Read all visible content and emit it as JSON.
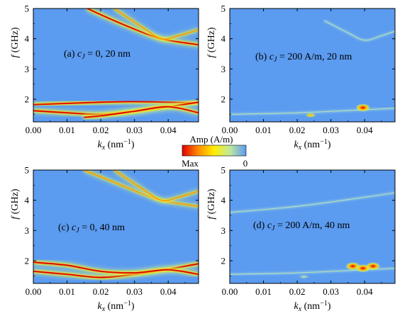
{
  "colorbar": {
    "title": "Amp (A/m)",
    "min_label": "Max",
    "max_label": "0",
    "colors": [
      "#e00000",
      "#ff8c00",
      "#ffee00",
      "#bfe8a0",
      "#5b9bf0"
    ]
  },
  "chart_data": [
    {
      "id": "a",
      "type": "heatmap",
      "annotation_prefix": "(a) ",
      "annotation_var": "c",
      "annotation_sub": "J",
      "annotation_rest": " = 0, 20 nm",
      "xlabel_var": "k",
      "xlabel_sub": "x",
      "xlabel_unit": " (nm",
      "xlabel_sup": "−1",
      "xlabel_close": ")",
      "ylabel_var": "f",
      "ylabel_unit": " (GHz)",
      "xlim": [
        0.0,
        0.049
      ],
      "ylim": [
        1.25,
        5.0
      ],
      "xticks": [
        "0.00",
        "0.01",
        "0.02",
        "0.03",
        "0.04"
      ],
      "yticks": [
        "2",
        "3",
        "4",
        "5"
      ],
      "background": "#5b9bf0",
      "branches": [
        {
          "x": [
            0.016,
            0.025,
            0.035,
            0.04,
            0.049
          ],
          "y": [
            5.0,
            4.55,
            4.1,
            3.95,
            3.8
          ],
          "intensity": "high"
        },
        {
          "x": [
            0.024,
            0.032,
            0.038,
            0.043,
            0.049
          ],
          "y": [
            5.0,
            4.4,
            4.0,
            4.1,
            4.3
          ],
          "intensity": "medium"
        },
        {
          "x": [
            0.0,
            0.02,
            0.03,
            0.04,
            0.049
          ],
          "y": [
            1.82,
            1.9,
            1.92,
            1.9,
            1.88
          ],
          "intensity": "high"
        },
        {
          "x": [
            0.0,
            0.01,
            0.02,
            0.03,
            0.04,
            0.049
          ],
          "y": [
            1.62,
            1.55,
            1.5,
            1.6,
            1.75,
            1.9
          ],
          "intensity": "high"
        },
        {
          "x": [
            0.015,
            0.02,
            0.03,
            0.04,
            0.049
          ],
          "y": [
            1.4,
            1.45,
            1.6,
            1.75,
            1.55
          ],
          "intensity": "high"
        }
      ]
    },
    {
      "id": "b",
      "type": "heatmap",
      "annotation_prefix": "(b) ",
      "annotation_var": "c",
      "annotation_sub": "J",
      "annotation_rest": " = 200 A/m, 20 nm",
      "xlabel_var": "k",
      "xlabel_sub": "x",
      "xlabel_unit": " (nm",
      "xlabel_sup": "−1",
      "xlabel_close": ")",
      "ylabel_var": "f",
      "ylabel_unit": " (GHz)",
      "xlim": [
        0.0,
        0.049
      ],
      "ylim": [
        1.25,
        5.0
      ],
      "xticks": [
        "0.00",
        "0.01",
        "0.02",
        "0.03",
        "0.04"
      ],
      "yticks": [
        "2",
        "3",
        "4",
        "5"
      ],
      "background": "#5b9bf0",
      "branches": [
        {
          "x": [
            0.028,
            0.035,
            0.04,
            0.045,
            0.049
          ],
          "y": [
            4.6,
            4.2,
            3.95,
            4.1,
            4.25
          ],
          "intensity": "faint"
        },
        {
          "x": [
            0.0,
            0.02,
            0.04,
            0.049
          ],
          "y": [
            1.5,
            1.55,
            1.65,
            1.7
          ],
          "intensity": "faint"
        }
      ],
      "hotspots": [
        {
          "x": 0.0395,
          "y": 1.72,
          "intensity": "high"
        },
        {
          "x": 0.024,
          "y": 1.47,
          "intensity": "medium"
        }
      ]
    },
    {
      "id": "c",
      "type": "heatmap",
      "annotation_prefix": "(c) ",
      "annotation_var": "c",
      "annotation_sub": "J",
      "annotation_rest": " = 0, 40 nm",
      "xlabel_var": "k",
      "xlabel_sub": "x",
      "xlabel_unit": " (nm",
      "xlabel_sup": "−1",
      "xlabel_close": ")",
      "ylabel_var": "f",
      "ylabel_unit": " (GHz)",
      "xlim": [
        0.0,
        0.049
      ],
      "ylim": [
        1.25,
        5.0
      ],
      "xticks": [
        "0.00",
        "0.01",
        "0.02",
        "0.03",
        "0.04"
      ],
      "yticks": [
        "2",
        "3",
        "4",
        "5"
      ],
      "background": "#5b9bf0",
      "branches": [
        {
          "x": [
            0.015,
            0.025,
            0.035,
            0.04,
            0.049
          ],
          "y": [
            5.0,
            4.55,
            4.1,
            3.95,
            3.8
          ],
          "intensity": "medium"
        },
        {
          "x": [
            0.024,
            0.032,
            0.038,
            0.043,
            0.049
          ],
          "y": [
            5.0,
            4.4,
            4.0,
            4.1,
            4.3
          ],
          "intensity": "medium"
        },
        {
          "x": [
            0.0,
            0.01,
            0.02,
            0.03,
            0.04,
            0.049
          ],
          "y": [
            1.65,
            1.55,
            1.45,
            1.55,
            1.72,
            1.9
          ],
          "intensity": "high"
        },
        {
          "x": [
            0.0,
            0.01,
            0.02,
            0.03,
            0.04,
            0.049
          ],
          "y": [
            1.95,
            1.85,
            1.65,
            1.6,
            1.7,
            1.55
          ],
          "intensity": "high"
        }
      ]
    },
    {
      "id": "d",
      "type": "heatmap",
      "annotation_prefix": "(d) ",
      "annotation_var": "c",
      "annotation_sub": "J",
      "annotation_rest": " = 200 A/m, 40 nm",
      "xlabel_var": "k",
      "xlabel_sub": "x",
      "xlabel_unit": " (nm",
      "xlabel_sup": "−1",
      "xlabel_close": ")",
      "ylabel_var": "f",
      "ylabel_unit": " (GHz)",
      "xlim": [
        0.0,
        0.049
      ],
      "ylim": [
        1.25,
        5.0
      ],
      "xticks": [
        "0.00",
        "0.01",
        "0.02",
        "0.03",
        "0.04"
      ],
      "yticks": [
        "2",
        "3",
        "4",
        "5"
      ],
      "background": "#5b9bf0",
      "branches": [
        {
          "x": [
            0.0,
            0.02,
            0.04,
            0.049
          ],
          "y": [
            3.6,
            3.8,
            4.1,
            4.25
          ],
          "intensity": "faint"
        },
        {
          "x": [
            0.0,
            0.02,
            0.04,
            0.049
          ],
          "y": [
            1.55,
            1.6,
            1.7,
            1.75
          ],
          "intensity": "faint"
        }
      ],
      "hotspots": [
        {
          "x": 0.0365,
          "y": 1.82,
          "intensity": "high"
        },
        {
          "x": 0.0425,
          "y": 1.82,
          "intensity": "high"
        },
        {
          "x": 0.0395,
          "y": 1.75,
          "intensity": "high"
        },
        {
          "x": 0.022,
          "y": 1.47,
          "intensity": "faint"
        }
      ]
    }
  ]
}
